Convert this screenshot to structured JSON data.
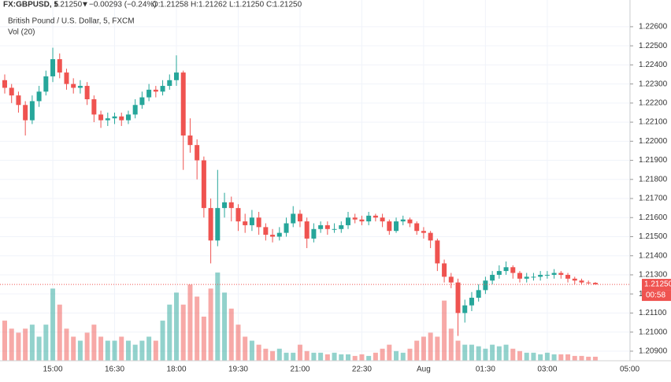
{
  "chart_data": {
    "type": "candlestick",
    "header": {
      "symbol": "FX:GBPUSD, 5",
      "last": "1.21250",
      "arrow": "▼",
      "change": "−0.00293 (−0.24%)",
      "o_label": "O:",
      "o": "1.21258",
      "h_label": "H:",
      "h": "1.21262",
      "l_label": "L:",
      "l": "1.21250",
      "c_label": "C:",
      "c": "1.21250"
    },
    "title": "British Pound / U.S. Dollar, 5, FXCM",
    "volume_label": "Vol (20)",
    "up_color": "#26a69a",
    "down_color": "#ef5350",
    "open": [
      1.2232,
      1.2228,
      1.2224,
      1.2219,
      1.2211,
      1.2221,
      1.2226,
      1.2234,
      1.2243,
      1.2236,
      1.223,
      1.2228,
      1.2229,
      1.2222,
      1.2214,
      1.2211,
      1.2212,
      1.2213,
      1.2211,
      1.2214,
      1.2219,
      1.2223,
      1.2227,
      1.2226,
      1.2229,
      1.2232,
      1.2236,
      1.2203,
      1.2198,
      1.219,
      1.2165,
      1.2148,
      1.2165,
      1.2168,
      1.2165,
      1.2158,
      1.2156,
      1.216,
      1.2155,
      1.2151,
      1.215,
      1.2152,
      1.2157,
      1.2162,
      1.2158,
      1.2149,
      1.2154,
      1.2156,
      1.2154,
      1.2154,
      1.2156,
      1.216,
      1.2159,
      1.2158,
      1.2161,
      1.216,
      1.2158,
      1.2153,
      1.2158,
      1.2159,
      1.2157,
      1.2153,
      1.2152,
      1.2148,
      1.2136,
      1.2129,
      1.2126,
      1.211,
      1.2114,
      1.2118,
      1.2122,
      1.2127,
      1.213,
      1.2132,
      1.2134,
      1.2131,
      1.2128,
      1.2129,
      1.2129,
      1.213,
      1.213,
      1.2131,
      1.213,
      1.2128,
      1.2127,
      1.2126,
      1.21258
    ],
    "high": [
      1.2235,
      1.223,
      1.2226,
      1.2221,
      1.2224,
      1.2229,
      1.2237,
      1.2249,
      1.2246,
      1.2238,
      1.2233,
      1.2232,
      1.2231,
      1.2224,
      1.2216,
      1.2215,
      1.2215,
      1.2215,
      1.2216,
      1.2222,
      1.2226,
      1.223,
      1.2229,
      1.2232,
      1.2235,
      1.2245,
      1.2237,
      1.2212,
      1.2201,
      1.2192,
      1.217,
      1.2185,
      1.2173,
      1.2171,
      1.2167,
      1.2162,
      1.2164,
      1.2163,
      1.2157,
      1.2154,
      1.2155,
      1.216,
      1.2166,
      1.2164,
      1.216,
      1.2157,
      1.2158,
      1.2158,
      1.2157,
      1.2158,
      1.2163,
      1.2162,
      1.2161,
      1.2163,
      1.2162,
      1.2162,
      1.2159,
      1.216,
      1.2161,
      1.216,
      1.2158,
      1.2155,
      1.2153,
      1.2149,
      1.2138,
      1.2131,
      1.2128,
      1.2117,
      1.2121,
      1.2125,
      1.2129,
      1.2132,
      1.2135,
      1.2137,
      1.2135,
      1.2132,
      1.2131,
      1.2131,
      1.2132,
      1.2132,
      1.2133,
      1.2132,
      1.2131,
      1.2129,
      1.2128,
      1.2127,
      1.21262
    ],
    "low": [
      1.2225,
      1.222,
      1.2215,
      1.2203,
      1.2209,
      1.2218,
      1.2224,
      1.2231,
      1.2233,
      1.2227,
      1.2225,
      1.2225,
      1.2219,
      1.221,
      1.2207,
      1.2208,
      1.2209,
      1.2208,
      1.2209,
      1.2212,
      1.2217,
      1.2221,
      1.2223,
      1.2224,
      1.2227,
      1.2229,
      1.2185,
      1.2194,
      1.218,
      1.216,
      1.2136,
      1.2145,
      1.216,
      1.2158,
      1.2153,
      1.2152,
      1.2153,
      1.2151,
      1.2148,
      1.2147,
      1.2148,
      1.215,
      1.2155,
      1.2155,
      1.2144,
      1.2147,
      1.2152,
      1.2151,
      1.2152,
      1.2152,
      1.2154,
      1.2157,
      1.2156,
      1.2156,
      1.2158,
      1.2155,
      1.2151,
      1.2152,
      1.2156,
      1.2155,
      1.2151,
      1.2149,
      1.2144,
      1.2132,
      1.2126,
      1.2123,
      1.2098,
      1.2105,
      1.2111,
      1.2116,
      1.212,
      1.2125,
      1.2128,
      1.213,
      1.2128,
      1.2126,
      1.2126,
      1.2127,
      1.2127,
      1.2128,
      1.2128,
      1.2128,
      1.2126,
      1.2125,
      1.2125,
      1.2125,
      1.2125
    ],
    "close": [
      1.2228,
      1.2224,
      1.2219,
      1.2211,
      1.2221,
      1.2226,
      1.2234,
      1.2243,
      1.2236,
      1.223,
      1.2228,
      1.2229,
      1.2222,
      1.2214,
      1.2211,
      1.2212,
      1.2213,
      1.2211,
      1.2214,
      1.2219,
      1.2223,
      1.2227,
      1.2226,
      1.2229,
      1.2232,
      1.2236,
      1.2203,
      1.2198,
      1.219,
      1.2165,
      1.2148,
      1.2165,
      1.2168,
      1.2165,
      1.2158,
      1.2156,
      1.216,
      1.2155,
      1.2151,
      1.215,
      1.2152,
      1.2157,
      1.2162,
      1.2158,
      1.2149,
      1.2154,
      1.2156,
      1.2154,
      1.2154,
      1.2156,
      1.216,
      1.2159,
      1.2158,
      1.2161,
      1.216,
      1.2158,
      1.2153,
      1.2158,
      1.2159,
      1.2157,
      1.2153,
      1.2152,
      1.2148,
      1.2136,
      1.2129,
      1.2126,
      1.211,
      1.2114,
      1.2118,
      1.2122,
      1.2127,
      1.213,
      1.2132,
      1.2134,
      1.2131,
      1.2128,
      1.2129,
      1.2129,
      1.213,
      1.213,
      1.2131,
      1.213,
      1.2128,
      1.2127,
      1.2126,
      1.21258,
      1.2125
    ],
    "volume": [
      50,
      40,
      35,
      40,
      45,
      30,
      45,
      90,
      70,
      40,
      30,
      25,
      35,
      45,
      30,
      25,
      25,
      30,
      25,
      20,
      25,
      30,
      25,
      50,
      70,
      85,
      70,
      95,
      80,
      55,
      90,
      110,
      85,
      65,
      45,
      30,
      25,
      20,
      15,
      12,
      15,
      10,
      10,
      20,
      12,
      10,
      10,
      8,
      10,
      8,
      8,
      6,
      8,
      6,
      10,
      15,
      20,
      12,
      10,
      15,
      25,
      30,
      35,
      30,
      75,
      40,
      25,
      20,
      20,
      18,
      15,
      20,
      18,
      20,
      15,
      12,
      10,
      10,
      8,
      10,
      8,
      8,
      8,
      6,
      6,
      5,
      5
    ],
    "ylim": [
      1.2085,
      1.2274
    ],
    "yticks": [
      {
        "value": 1.226,
        "label": "1.22600"
      },
      {
        "value": 1.225,
        "label": "1.22500"
      },
      {
        "value": 1.224,
        "label": "1.22400"
      },
      {
        "value": 1.223,
        "label": "1.22300"
      },
      {
        "value": 1.222,
        "label": "1.22200"
      },
      {
        "value": 1.221,
        "label": "1.22100"
      },
      {
        "value": 1.22,
        "label": "1.22000"
      },
      {
        "value": 1.219,
        "label": "1.21900"
      },
      {
        "value": 1.218,
        "label": "1.21800"
      },
      {
        "value": 1.217,
        "label": "1.21700"
      },
      {
        "value": 1.216,
        "label": "1.21600"
      },
      {
        "value": 1.215,
        "label": "1.21500"
      },
      {
        "value": 1.214,
        "label": "1.21400"
      },
      {
        "value": 1.213,
        "label": "1.21300"
      },
      {
        "value": 1.212,
        "label": "1.21200"
      },
      {
        "value": 1.211,
        "label": "1.21100"
      },
      {
        "value": 1.21,
        "label": "1.21000"
      },
      {
        "value": 1.209,
        "label": "1.20900"
      }
    ],
    "xticks": [
      {
        "value": 7,
        "label": "15:00"
      },
      {
        "value": 16,
        "label": "16:30"
      },
      {
        "value": 25,
        "label": "18:00"
      },
      {
        "value": 34,
        "label": "19:30"
      },
      {
        "value": 43,
        "label": "21:00"
      },
      {
        "value": 52,
        "label": "22:30"
      },
      {
        "value": 61,
        "label": "Aug"
      },
      {
        "value": 70,
        "label": "01:30"
      },
      {
        "value": 79,
        "label": "03:00"
      },
      {
        "value": 91,
        "label": "05:00"
      }
    ],
    "last_price": {
      "value": 1.2125,
      "label": "1.21250"
    },
    "countdown": "00:58"
  }
}
